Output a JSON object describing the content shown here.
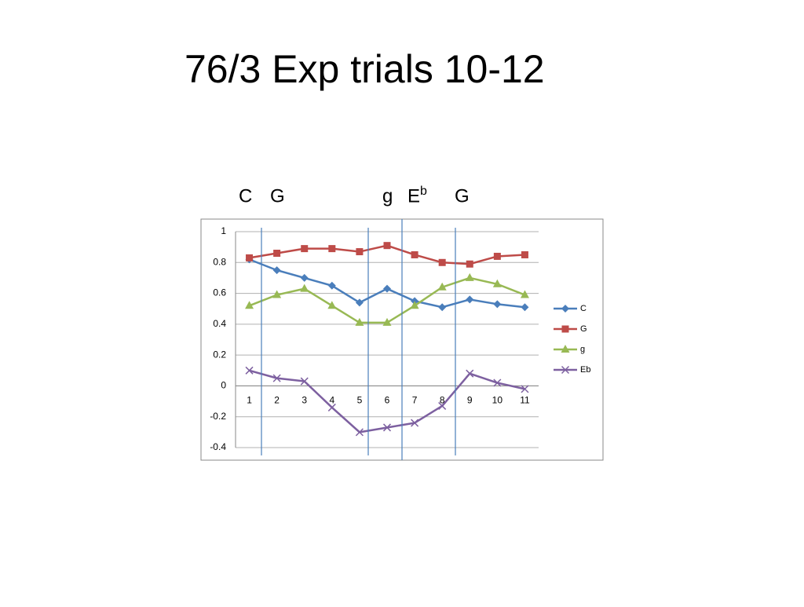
{
  "chart_data": {
    "type": "line",
    "title": "76/3 Exp trials 10-12",
    "annotations": [
      "C",
      "G",
      "g",
      "E",
      "b",
      "G"
    ],
    "categories": [
      "1",
      "2",
      "3",
      "4",
      "5",
      "6",
      "7",
      "8",
      "9",
      "10",
      "11"
    ],
    "series": [
      {
        "name": "C",
        "color": "#4a7ebb",
        "marker": "diamond",
        "values": [
          0.82,
          0.75,
          0.7,
          0.65,
          0.54,
          0.63,
          0.55,
          0.51,
          0.56,
          0.53,
          0.51
        ]
      },
      {
        "name": "G",
        "color": "#be4b48",
        "marker": "square",
        "values": [
          0.83,
          0.86,
          0.89,
          0.89,
          0.87,
          0.91,
          0.85,
          0.8,
          0.79,
          0.84,
          0.85
        ]
      },
      {
        "name": "g",
        "color": "#98b954",
        "marker": "triangle",
        "values": [
          0.52,
          0.59,
          0.63,
          0.52,
          0.41,
          0.41,
          0.52,
          0.64,
          0.7,
          0.66,
          0.59
        ]
      },
      {
        "name": "Eb",
        "color": "#7d60a0",
        "marker": "x",
        "values": [
          0.1,
          0.05,
          0.03,
          -0.14,
          -0.3,
          -0.27,
          -0.24,
          -0.13,
          0.08,
          0.02,
          -0.02
        ]
      }
    ],
    "ylim": [
      -0.4,
      1
    ],
    "yticks": [
      1,
      0.8,
      0.6,
      0.4,
      0.2,
      0,
      -0.2,
      -0.4
    ],
    "grid": true,
    "legend": "right"
  }
}
